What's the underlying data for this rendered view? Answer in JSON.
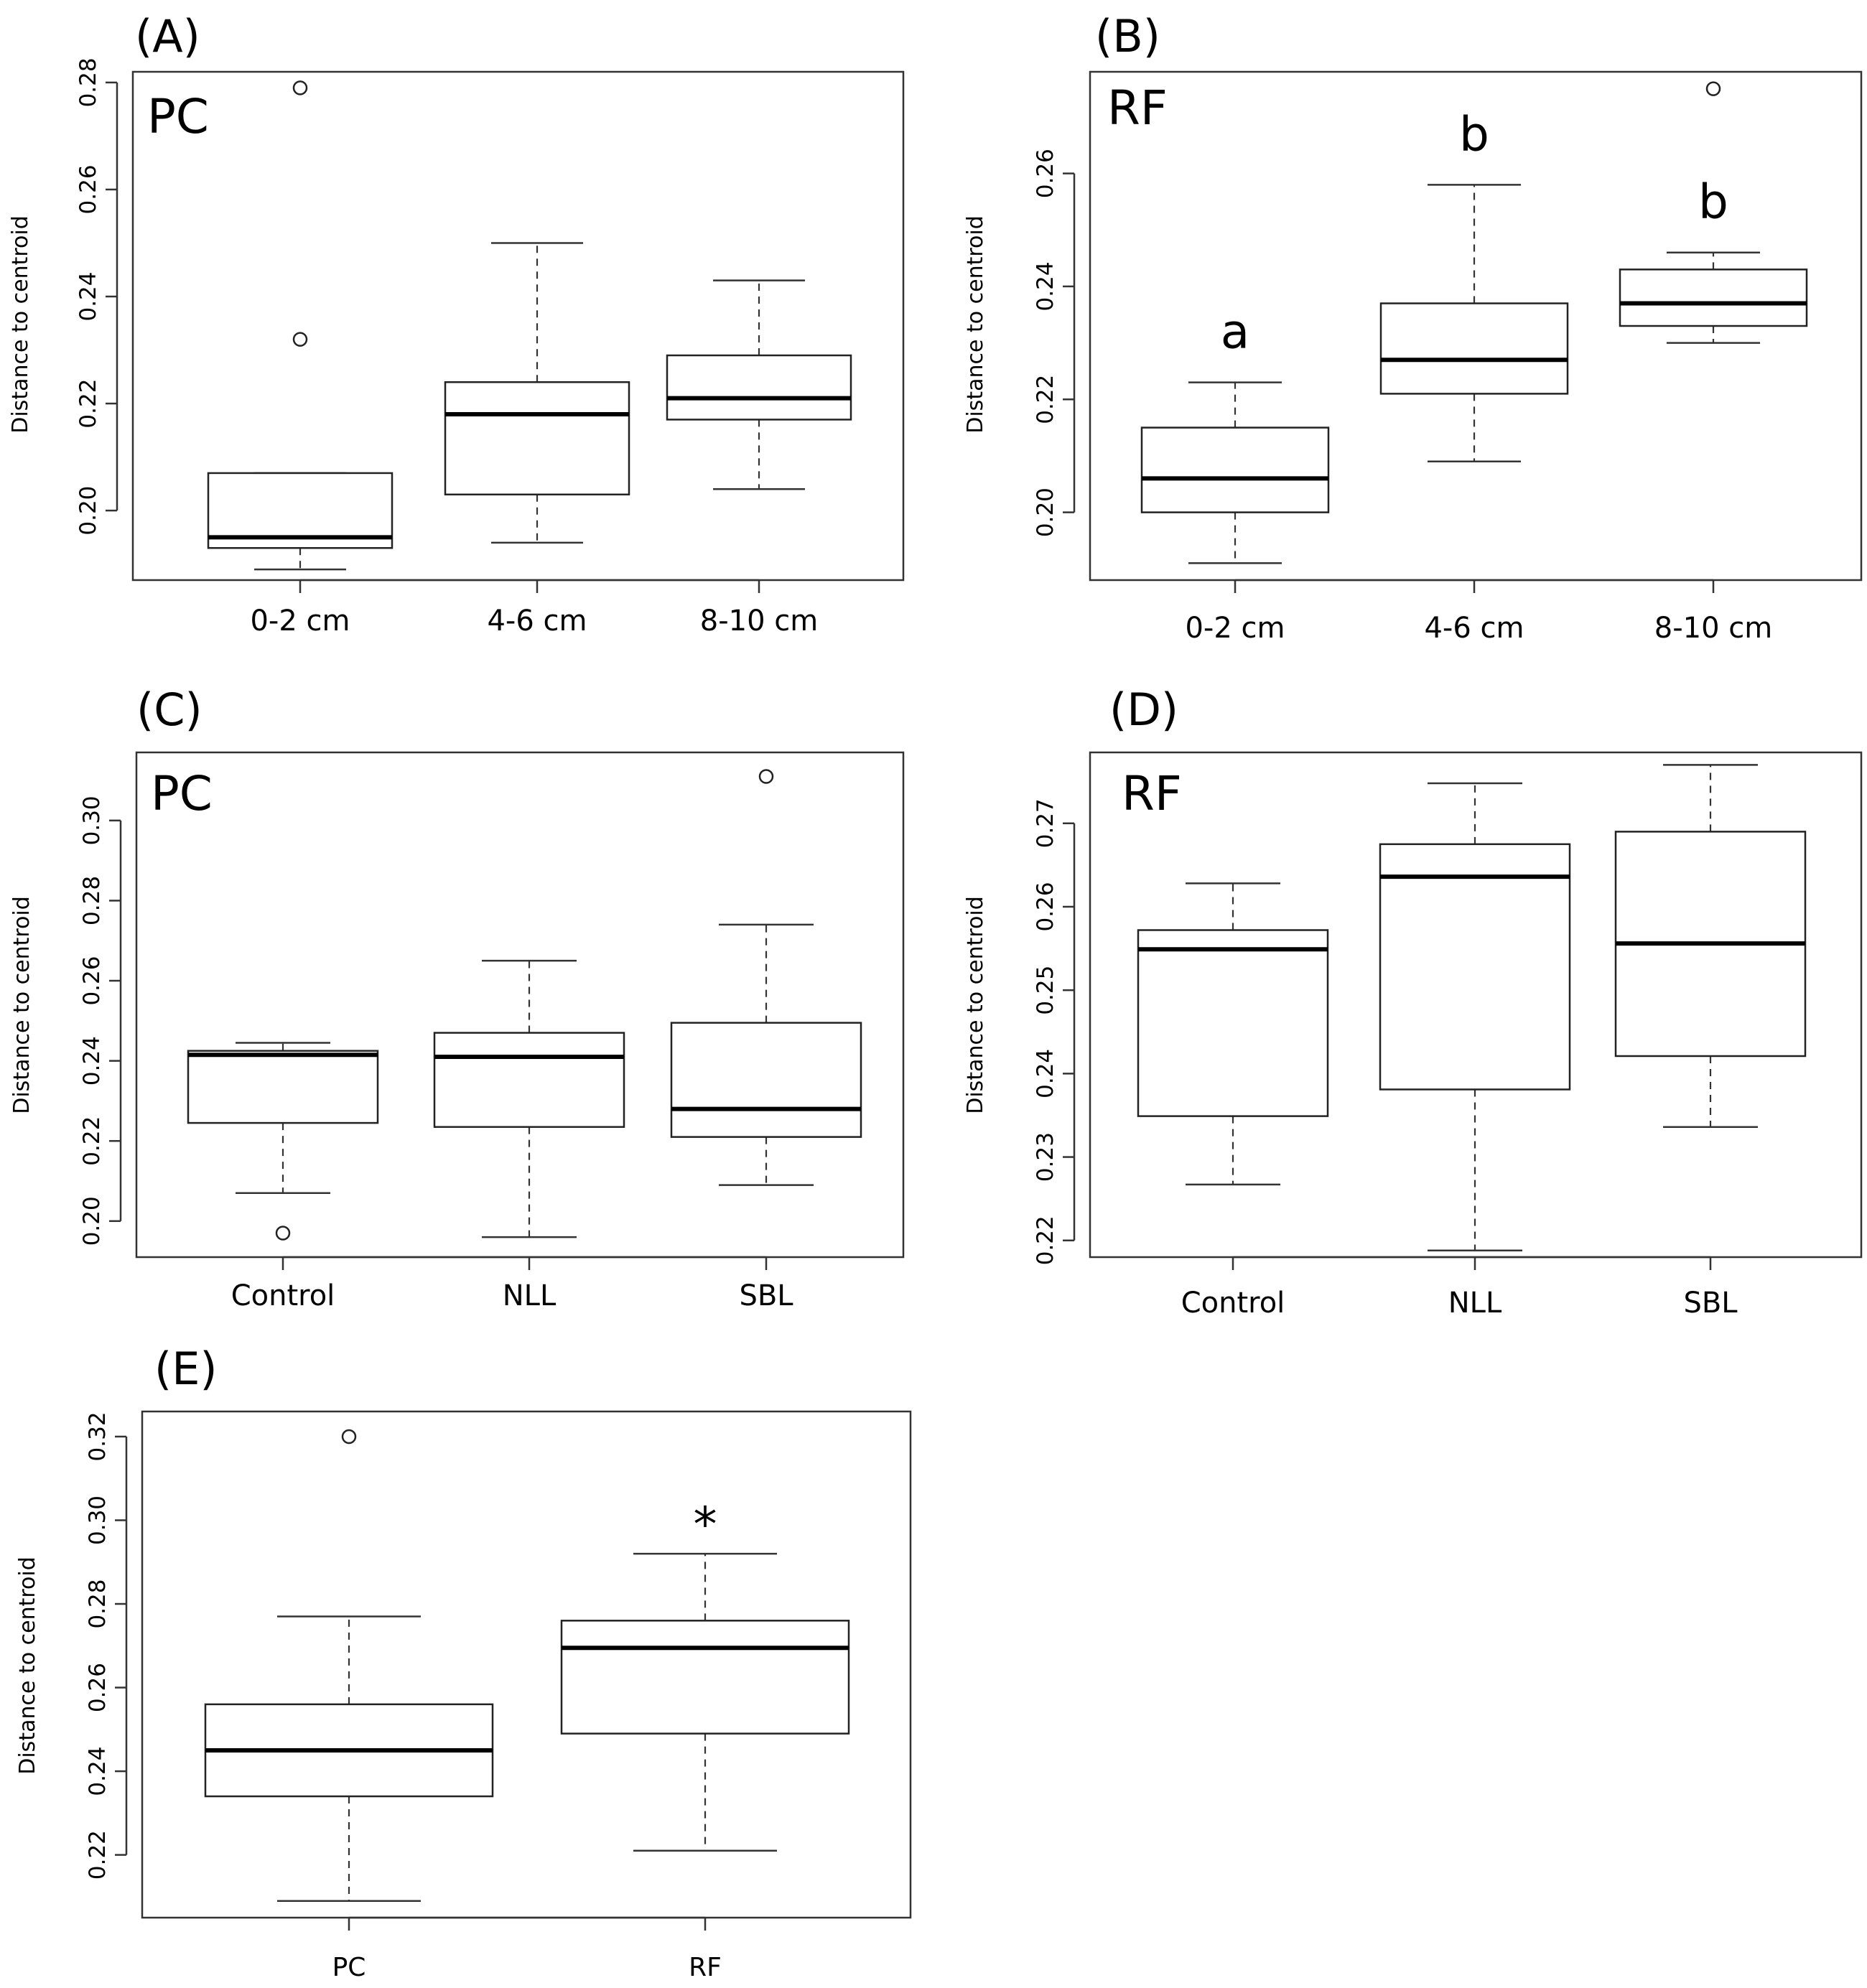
{
  "chart_data": [
    {
      "id": "A",
      "type": "box",
      "panel_letter": "(A)",
      "panel_label": "PC",
      "ylabel": "Distance to centroid",
      "xlabel": "",
      "ylim": [
        0.187,
        0.282
      ],
      "yticks": [
        0.2,
        0.22,
        0.24,
        0.26,
        0.28
      ],
      "ytick_labels": [
        "0.20",
        "0.22",
        "0.24",
        "0.26",
        "0.28"
      ],
      "categories": [
        "0-2 cm",
        "4-6 cm",
        "8-10 cm"
      ],
      "boxes": [
        {
          "min": 0.189,
          "q1": 0.193,
          "median": 0.195,
          "q3": 0.207,
          "max": 0.207,
          "outliers": [
            0.279,
            0.232
          ],
          "sig": ""
        },
        {
          "min": 0.194,
          "q1": 0.203,
          "median": 0.218,
          "q3": 0.224,
          "max": 0.25,
          "outliers": [],
          "sig": ""
        },
        {
          "min": 0.204,
          "q1": 0.217,
          "median": 0.221,
          "q3": 0.229,
          "max": 0.243,
          "outliers": [],
          "sig": ""
        }
      ]
    },
    {
      "id": "B",
      "type": "box",
      "panel_letter": "(B)",
      "panel_label": "RF",
      "ylabel": "Distance to centroid",
      "xlabel": "",
      "ylim": [
        0.188,
        0.278
      ],
      "yticks": [
        0.2,
        0.22,
        0.24,
        0.26
      ],
      "ytick_labels": [
        "0.20",
        "0.22",
        "0.24",
        "0.26"
      ],
      "categories": [
        "0-2 cm",
        "4-6 cm",
        "8-10 cm"
      ],
      "boxes": [
        {
          "min": 0.191,
          "q1": 0.2,
          "median": 0.206,
          "q3": 0.215,
          "max": 0.223,
          "outliers": [],
          "sig": "a"
        },
        {
          "min": 0.209,
          "q1": 0.221,
          "median": 0.227,
          "q3": 0.237,
          "max": 0.258,
          "outliers": [],
          "sig": "b"
        },
        {
          "min": 0.23,
          "q1": 0.233,
          "median": 0.237,
          "q3": 0.243,
          "max": 0.246,
          "outliers": [
            0.275
          ],
          "sig": "b"
        }
      ]
    },
    {
      "id": "C",
      "type": "box",
      "panel_letter": "(C)",
      "panel_label": "PC",
      "ylabel": "Distance to centroid",
      "xlabel": "",
      "ylim": [
        0.191,
        0.317
      ],
      "yticks": [
        0.2,
        0.22,
        0.24,
        0.26,
        0.28,
        0.3
      ],
      "ytick_labels": [
        "0.20",
        "0.22",
        "0.24",
        "0.26",
        "0.28",
        "0.30"
      ],
      "categories": [
        "Control",
        "NLL",
        "SBL"
      ],
      "boxes": [
        {
          "min": 0.207,
          "q1": 0.2245,
          "median": 0.2415,
          "q3": 0.2425,
          "max": 0.2445,
          "outliers": [
            0.197
          ],
          "sig": ""
        },
        {
          "min": 0.196,
          "q1": 0.2235,
          "median": 0.241,
          "q3": 0.247,
          "max": 0.265,
          "outliers": [],
          "sig": ""
        },
        {
          "min": 0.209,
          "q1": 0.221,
          "median": 0.228,
          "q3": 0.2495,
          "max": 0.274,
          "outliers": [
            0.311
          ],
          "sig": ""
        }
      ]
    },
    {
      "id": "D",
      "type": "box",
      "panel_letter": "(D)",
      "panel_label": "RF",
      "ylabel": "Distance to centroid",
      "xlabel": "",
      "ylim": [
        0.218,
        0.2785
      ],
      "yticks": [
        0.22,
        0.23,
        0.24,
        0.25,
        0.26,
        0.27
      ],
      "ytick_labels": [
        "0.22",
        "0.23",
        "0.24",
        "0.25",
        "0.26",
        "0.27"
      ],
      "categories": [
        "Control",
        "NLL",
        "SBL"
      ],
      "boxes": [
        {
          "min": 0.2267,
          "q1": 0.2349,
          "median": 0.2549,
          "q3": 0.2572,
          "max": 0.2628,
          "outliers": [],
          "sig": ""
        },
        {
          "min": 0.2188,
          "q1": 0.2381,
          "median": 0.2636,
          "q3": 0.2675,
          "max": 0.2748,
          "outliers": [],
          "sig": ""
        },
        {
          "min": 0.2336,
          "q1": 0.2421,
          "median": 0.2556,
          "q3": 0.269,
          "max": 0.277,
          "outliers": [],
          "sig": ""
        }
      ]
    },
    {
      "id": "E",
      "type": "box",
      "panel_letter": "(E)",
      "panel_label": "",
      "ylabel": "Distance to centroid",
      "xlabel": "",
      "ylim": [
        0.205,
        0.326
      ],
      "yticks": [
        0.22,
        0.24,
        0.26,
        0.28,
        0.3,
        0.32
      ],
      "ytick_labels": [
        "0.22",
        "0.24",
        "0.26",
        "0.28",
        "0.30",
        "0.32"
      ],
      "categories": [
        "PC",
        "RF"
      ],
      "boxes": [
        {
          "min": 0.209,
          "q1": 0.234,
          "median": 0.245,
          "q3": 0.256,
          "max": 0.277,
          "outliers": [
            0.32
          ],
          "sig": ""
        },
        {
          "min": 0.221,
          "q1": 0.249,
          "median": 0.2695,
          "q3": 0.276,
          "max": 0.292,
          "outliers": [],
          "sig": "*"
        }
      ]
    }
  ]
}
